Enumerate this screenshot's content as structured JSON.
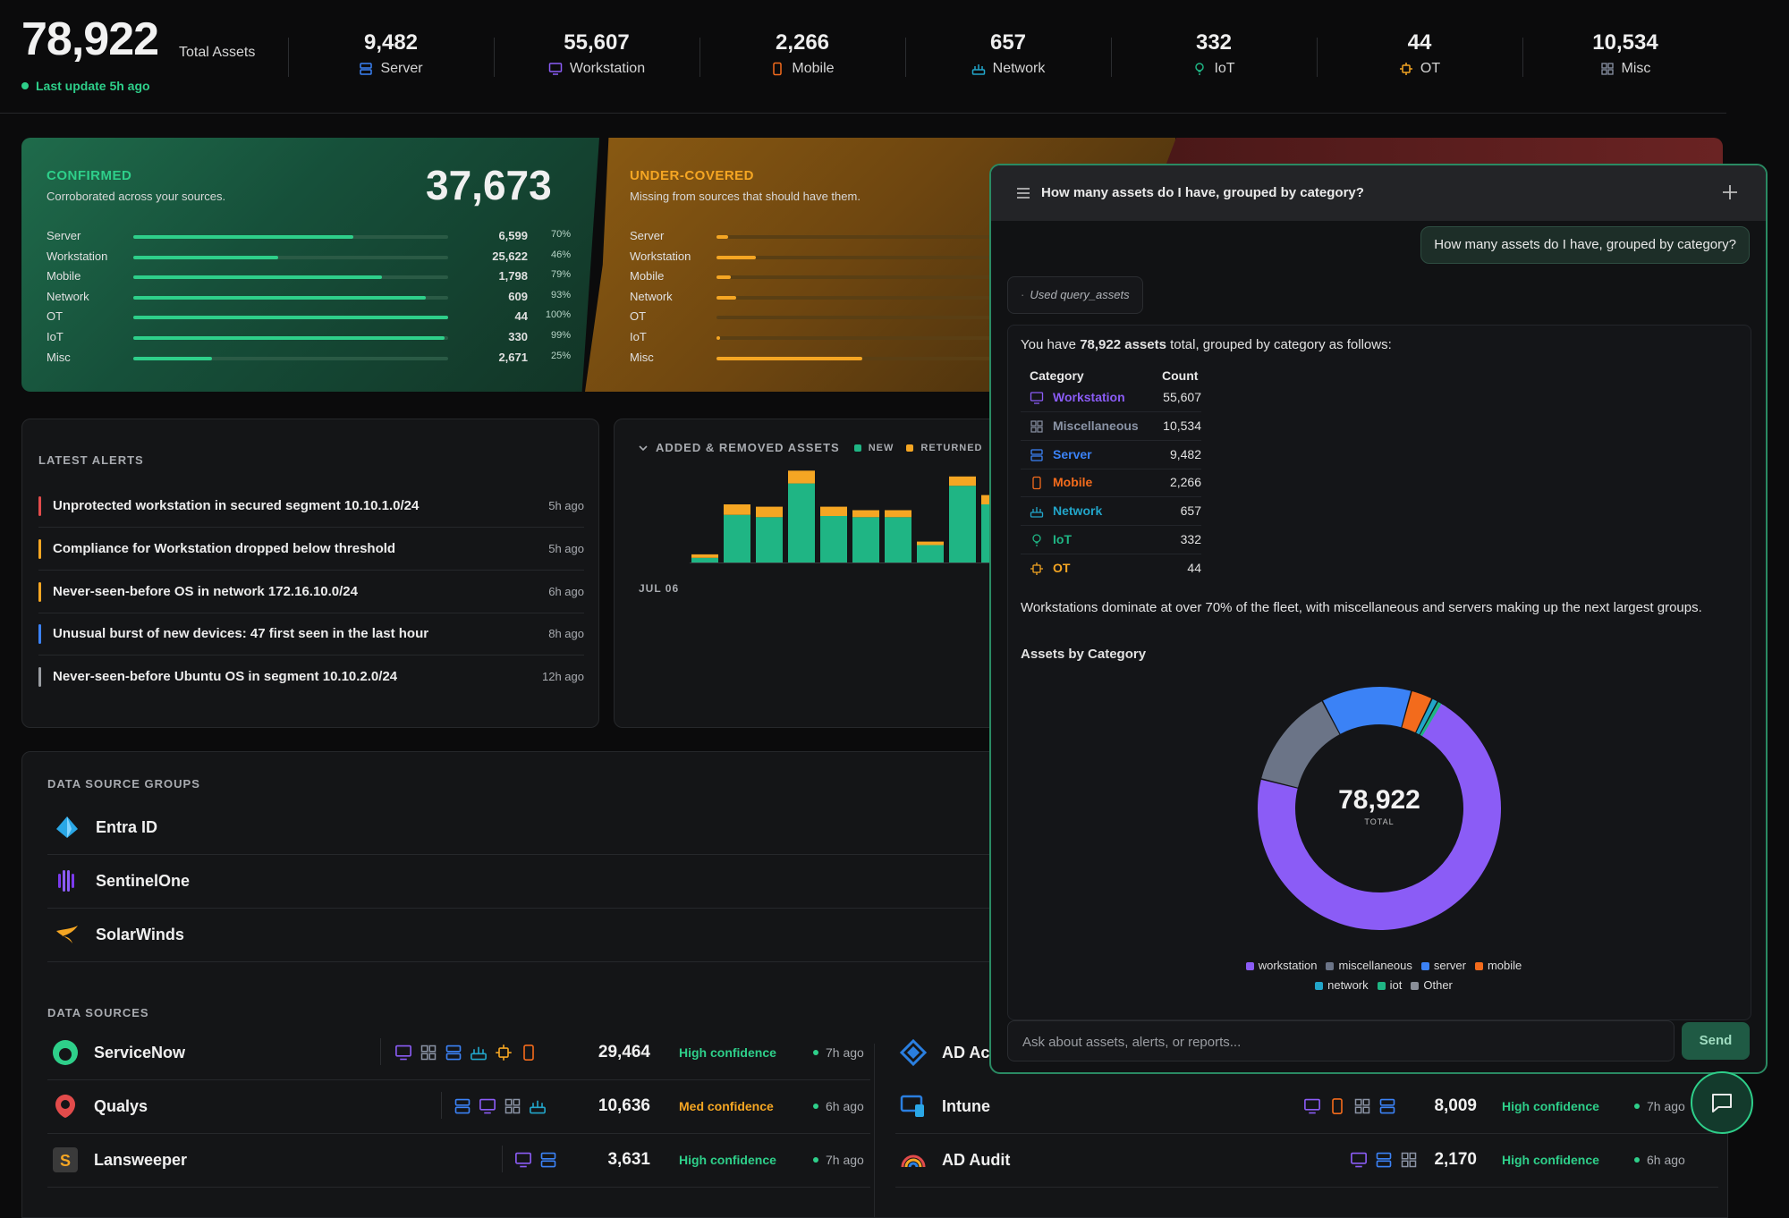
{
  "summary": {
    "total_value": "78,922",
    "total_label": "Total Assets",
    "last_update": "Last update 5h ago",
    "stats": [
      {
        "value": "9,482",
        "label": "Server",
        "icon": "server-icon"
      },
      {
        "value": "55,607",
        "label": "Workstation",
        "icon": "monitor-icon"
      },
      {
        "value": "2,266",
        "label": "Mobile",
        "icon": "mobile-icon"
      },
      {
        "value": "657",
        "label": "Network",
        "icon": "network-icon"
      },
      {
        "value": "332",
        "label": "IoT",
        "icon": "bulb-icon"
      },
      {
        "value": "44",
        "label": "OT",
        "icon": "gear-icon"
      },
      {
        "value": "10,534",
        "label": "Misc",
        "icon": "grid-icon"
      }
    ]
  },
  "confirmed": {
    "title": "CONFIRMED",
    "subtitle": "Corroborated across your sources.",
    "total": "37,673",
    "rows": [
      {
        "label": "Server",
        "value": "6,599",
        "pct": "70%",
        "fraction": 0.7
      },
      {
        "label": "Workstation",
        "value": "25,622",
        "pct": "46%",
        "fraction": 0.46
      },
      {
        "label": "Mobile",
        "value": "1,798",
        "pct": "79%",
        "fraction": 0.79
      },
      {
        "label": "Network",
        "value": "609",
        "pct": "93%",
        "fraction": 0.93
      },
      {
        "label": "OT",
        "value": "44",
        "pct": "100%",
        "fraction": 1.0
      },
      {
        "label": "IoT",
        "value": "330",
        "pct": "99%",
        "fraction": 0.99
      },
      {
        "label": "Misc",
        "value": "2,671",
        "pct": "25%",
        "fraction": 0.25
      }
    ]
  },
  "under_covered": {
    "title": "UNDER-COVERED",
    "subtitle": "Missing from sources that should have them.",
    "rows": [
      {
        "label": "Server",
        "fraction": 0.03
      },
      {
        "label": "Workstation",
        "fraction": 0.1
      },
      {
        "label": "Mobile",
        "fraction": 0.036
      },
      {
        "label": "Network",
        "fraction": 0.05
      },
      {
        "label": "OT",
        "fraction": 0.0
      },
      {
        "label": "IoT",
        "fraction": 0.008
      },
      {
        "label": "Misc",
        "fraction": 0.37
      }
    ]
  },
  "alerts": {
    "title": "LATEST ALERTS",
    "items": [
      {
        "text": "Unprotected workstation in secured segment 10.10.1.0/24",
        "time": "5h ago",
        "color": "#e24b4b"
      },
      {
        "text": "Compliance for Workstation dropped below threshold",
        "time": "5h ago",
        "color": "#f5a623"
      },
      {
        "text": "Never-seen-before OS in network 172.16.10.0/24",
        "time": "6h ago",
        "color": "#f5a623"
      },
      {
        "text": "Unusual burst of new devices: 47 first seen in the last hour",
        "time": "8h ago",
        "color": "#3b82f6"
      },
      {
        "text": "Never-seen-before Ubuntu OS in segment 10.10.2.0/24",
        "time": "12h ago",
        "color": "#9a9da2"
      }
    ]
  },
  "added_removed": {
    "title": "ADDED & REMOVED ASSETS",
    "legend_new": "NEW",
    "legend_returned": "RETURNED",
    "x_label": "JUL 06"
  },
  "chart_data": {
    "type": "bar",
    "stacked": true,
    "series": [
      {
        "name": "NEW",
        "color": "#1fb584",
        "values": [
          4,
          41,
          39,
          68,
          40,
          39,
          39,
          15,
          66,
          50
        ]
      },
      {
        "name": "RETURNED",
        "color": "#f5a623",
        "values": [
          3,
          9,
          9,
          11,
          8,
          6,
          6,
          3,
          8,
          8
        ]
      }
    ],
    "categories": [
      "JUL 06",
      "",
      "",
      "",
      "",
      "",
      "",
      "",
      "",
      ""
    ],
    "ylim": [
      0,
      80
    ]
  },
  "data_source_groups": {
    "title": "DATA SOURCE GROUPS",
    "items": [
      {
        "name": "Entra ID",
        "icon": "entra-id-icon"
      },
      {
        "name": "SentinelOne",
        "icon": "sentinelone-icon"
      },
      {
        "name": "SolarWinds",
        "icon": "solarwinds-icon"
      }
    ]
  },
  "data_sources": {
    "title": "DATA SOURCES",
    "left": [
      {
        "name": "ServiceNow",
        "icon": "servicenow-icon",
        "count": "29,464",
        "confidence": "High confidence",
        "conf_color": "#2ecf8a",
        "ago": "7h ago"
      },
      {
        "name": "Qualys",
        "icon": "qualys-icon",
        "count": "10,636",
        "confidence": "Med confidence",
        "conf_color": "#f5a623",
        "ago": "6h ago"
      },
      {
        "name": "Lansweeper",
        "icon": "lansweeper-icon",
        "count": "3,631",
        "confidence": "High confidence",
        "conf_color": "#2ecf8a",
        "ago": "7h ago"
      }
    ],
    "right": [
      {
        "name": "AD Ac",
        "icon": "ad-icon"
      },
      {
        "name": "Intune",
        "icon": "intune-icon",
        "count": "8,009",
        "confidence": "High confidence",
        "conf_color": "#2ecf8a",
        "ago": "7h ago"
      },
      {
        "name": "AD Audit",
        "icon": "ad-audit-icon",
        "count": "2,170",
        "confidence": "High confidence",
        "conf_color": "#2ecf8a",
        "ago": "6h ago"
      }
    ]
  },
  "chat": {
    "header_question": "How many assets do I have, grouped by category?",
    "user_message": "How many assets do I have, grouped by category?",
    "tool_used": "Used query_assets",
    "answer_prefix": "You have ",
    "answer_bold": "78,922 assets",
    "answer_suffix": " total, grouped by category as follows:",
    "table_headers": {
      "category": "Category",
      "count": "Count"
    },
    "table_rows": [
      {
        "name": "Workstation",
        "count": "55,607",
        "color": "#8b5cf6",
        "icon": "monitor-icon"
      },
      {
        "name": "Miscellaneous",
        "count": "10,534",
        "color": "#8a93a5",
        "icon": "grid-icon"
      },
      {
        "name": "Server",
        "count": "9,482",
        "color": "#3b82f6",
        "icon": "server-icon"
      },
      {
        "name": "Mobile",
        "count": "2,266",
        "color": "#f36b1c",
        "icon": "mobile-icon"
      },
      {
        "name": "Network",
        "count": "657",
        "color": "#22a5c9",
        "icon": "network-icon"
      },
      {
        "name": "IoT",
        "count": "332",
        "color": "#1fb584",
        "icon": "bulb-icon"
      },
      {
        "name": "OT",
        "count": "44",
        "color": "#f5a623",
        "icon": "gear-icon"
      }
    ],
    "summary_text": "Workstations dominate at over 70% of the fleet, with miscellaneous and servers making up the next largest groups.",
    "chart_title": "Assets by Category",
    "donut_total": "78,922",
    "donut_total_label": "TOTAL",
    "donut": [
      {
        "name": "workstation",
        "value": 55607,
        "color": "#8b5cf6"
      },
      {
        "name": "miscellaneous",
        "value": 10534,
        "color": "#6b7487"
      },
      {
        "name": "server",
        "value": 9482,
        "color": "#3b82f6"
      },
      {
        "name": "mobile",
        "value": 2266,
        "color": "#f36b1c"
      },
      {
        "name": "network",
        "value": 657,
        "color": "#22a5c9"
      },
      {
        "name": "iot",
        "value": 332,
        "color": "#1fb584"
      },
      {
        "name": "Other",
        "value": 44,
        "color": "#8a8f98"
      }
    ],
    "input_placeholder": "Ask about assets, alerts, or reports...",
    "send_label": "Send"
  }
}
